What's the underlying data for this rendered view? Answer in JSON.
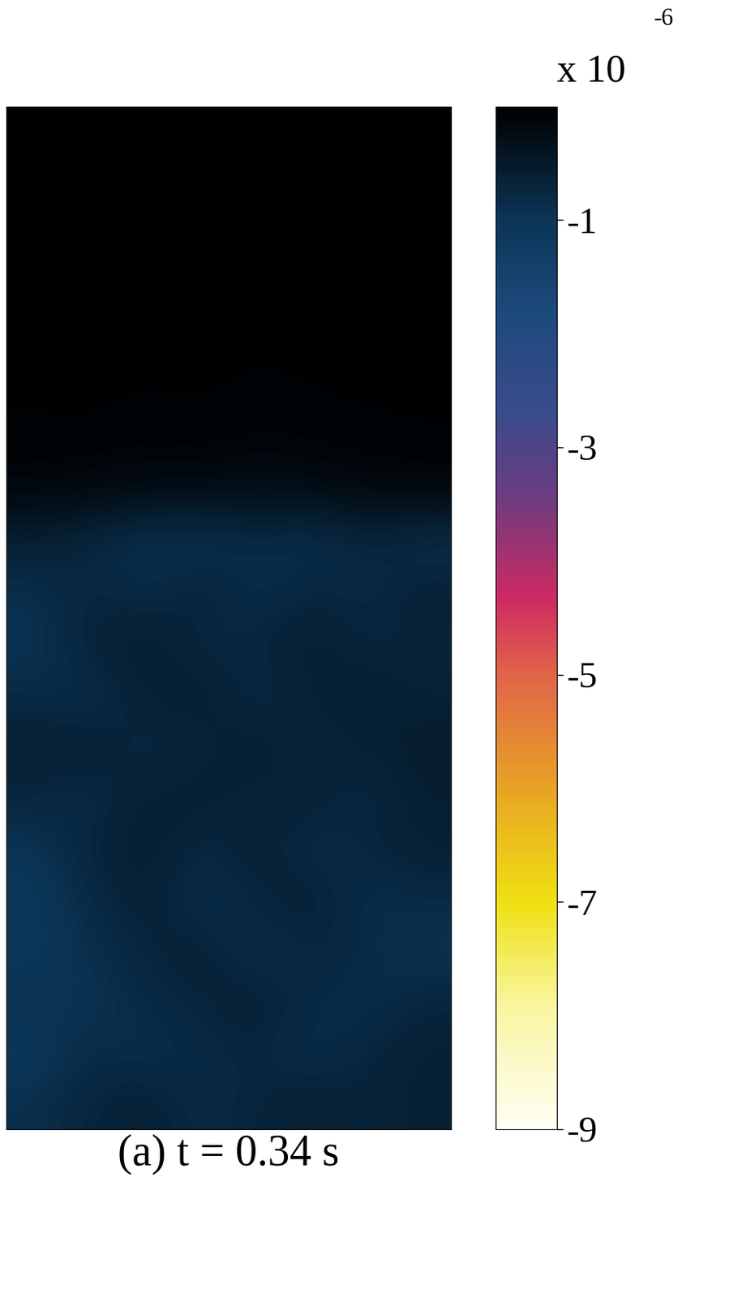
{
  "chart_data": {
    "type": "heatmap",
    "xlabel": "(a) t = 0.34 s",
    "tick_labels": false,
    "cells": [
      [
        -0.05,
        -0.05,
        -0.06,
        -0.05,
        -0.05,
        -0.06,
        -0.05,
        -0.05
      ],
      [
        -0.05,
        -0.06,
        -0.05,
        -0.05,
        -0.06,
        -0.05,
        -0.05,
        -0.06
      ],
      [
        -0.06,
        -0.05,
        -0.05,
        -0.06,
        -0.05,
        -0.05,
        -0.06,
        -0.05
      ],
      [
        -0.05,
        -0.06,
        -0.06,
        -0.05,
        -0.05,
        -0.06,
        -0.05,
        -0.05
      ],
      [
        -0.06,
        -0.05,
        -0.05,
        -0.06,
        -0.06,
        -0.05,
        -0.05,
        -0.06
      ],
      [
        -0.06,
        -0.06,
        -0.07,
        -0.06,
        -0.08,
        -0.07,
        -0.06,
        -0.06
      ],
      [
        -0.08,
        -0.07,
        -0.09,
        -0.08,
        -0.1,
        -0.09,
        -0.08,
        -0.07
      ],
      [
        -0.12,
        -0.15,
        -0.2,
        -0.18,
        -0.25,
        -0.2,
        -0.15,
        -0.12
      ],
      [
        -0.6,
        -0.75,
        -0.95,
        -1.0,
        -0.8,
        -0.95,
        -0.7,
        -0.9
      ],
      [
        -0.9,
        -0.7,
        -0.85,
        -0.6,
        -0.9,
        -0.7,
        -0.8,
        -0.6
      ],
      [
        -1.0,
        -0.65,
        -0.5,
        -0.8,
        -0.7,
        -0.55,
        -0.75,
        -0.7
      ],
      [
        -0.8,
        -0.9,
        -0.6,
        -0.5,
        -0.85,
        -0.6,
        -0.5,
        -0.65
      ],
      [
        -0.6,
        -0.55,
        -0.8,
        -0.7,
        -0.5,
        -0.75,
        -0.6,
        -0.5
      ],
      [
        -0.7,
        -0.85,
        -0.6,
        -0.55,
        -0.7,
        -0.6,
        -0.8,
        -0.55
      ],
      [
        -1.0,
        -0.7,
        -0.5,
        -0.8,
        -0.6,
        -0.85,
        -0.7,
        -0.6
      ],
      [
        -1.1,
        -0.8,
        -0.6,
        -0.9,
        -0.7,
        -0.6,
        -0.9,
        -0.8
      ],
      [
        -1.1,
        -0.9,
        -0.7,
        -0.6,
        -0.9,
        -0.7,
        -0.8,
        -1.0
      ],
      [
        -0.9,
        -1.0,
        -0.8,
        -0.7,
        -0.6,
        -0.8,
        -0.9,
        -0.7
      ],
      [
        -1.1,
        -0.8,
        -0.9,
        -0.8,
        -0.7,
        -0.9,
        -0.7,
        -0.6
      ],
      [
        -0.9,
        -0.7,
        -0.6,
        -0.8,
        -0.7,
        -0.6,
        -0.7,
        -0.6
      ]
    ],
    "colorbar": {
      "range": [
        -9,
        0
      ],
      "ticks": [
        -1,
        -3,
        -5,
        -7,
        -9
      ],
      "label": "x 10",
      "label_exponent": "-6"
    }
  }
}
